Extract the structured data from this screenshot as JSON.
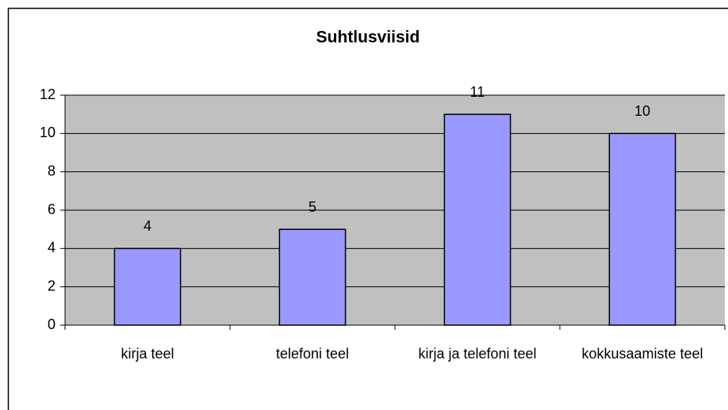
{
  "chart_data": {
    "type": "bar",
    "title": "Suhtlusviisid",
    "categories": [
      "kirja teel",
      "telefoni teel",
      "kirja ja telefoni teel",
      "kokkusaamiste teel"
    ],
    "values": [
      4,
      5,
      11,
      10
    ],
    "color": "#9999ff",
    "plot_background": "#c0c0c0",
    "ylim": [
      0,
      12
    ],
    "yticks": [
      0,
      2,
      4,
      6,
      8,
      10,
      12
    ],
    "grid": true
  }
}
